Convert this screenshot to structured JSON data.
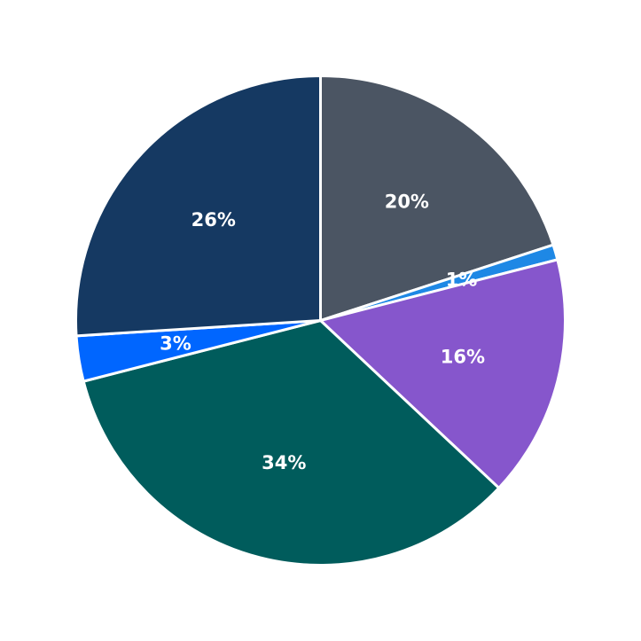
{
  "chart_data": {
    "type": "pie",
    "title": "",
    "start_angle_deg": 90,
    "direction": "clockwise",
    "slices": [
      {
        "label": "20%",
        "value": 20,
        "color": "#4b5563"
      },
      {
        "label": "1%",
        "value": 1,
        "color": "#1e88e5"
      },
      {
        "label": "16%",
        "value": 16,
        "color": "#8656cc"
      },
      {
        "label": "34%",
        "value": 34,
        "color": "#005c5c"
      },
      {
        "label": "3%",
        "value": 3,
        "color": "#0066ff"
      },
      {
        "label": "26%",
        "value": 26,
        "color": "#153962"
      }
    ]
  }
}
